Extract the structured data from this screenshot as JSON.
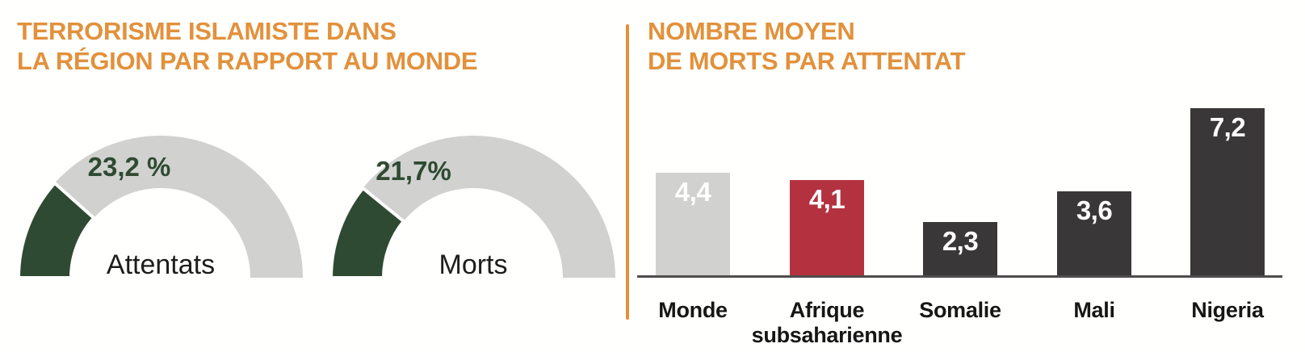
{
  "page_background": "#FFFFFD",
  "accent_orange": "#E2913C",
  "left_panel": {
    "title_line1": "TERRORISME ISLAMISTE DANS",
    "title_line2": "LA RÉGION PAR RAPPORT AU MONDE"
  },
  "right_panel": {
    "title_line1": "NOMBRE MOYEN",
    "title_line2": "DE MORTS PAR ATTENTAT"
  },
  "chart_data": [
    {
      "type": "gauge",
      "title": "Terrorisme islamiste dans la région par rapport au monde",
      "unit": "%",
      "range": [
        0,
        100
      ],
      "filled_color": "#2F4A33",
      "remainder_color": "#D1D1D0",
      "label_color": "#2E4A32",
      "series": [
        {
          "name": "Attentats",
          "value": 23.2,
          "display": "23,2 %"
        },
        {
          "name": "Morts",
          "value": 21.7,
          "display": "21,7%"
        }
      ]
    },
    {
      "type": "bar",
      "title": "Nombre moyen de morts par attentat",
      "categories": [
        "Monde",
        "Afrique subsaharienne",
        "Somalie",
        "Mali",
        "Nigeria"
      ],
      "values": [
        4.4,
        4.1,
        2.3,
        3.6,
        7.2
      ],
      "value_labels": [
        "4,4",
        "4,1",
        "2,3",
        "3,6",
        "7,2"
      ],
      "bar_colors": [
        "#D1D1D0",
        "#B43240",
        "#3A3738",
        "#3A3738",
        "#3A3738"
      ],
      "value_label_color": "#FFFFFF",
      "category_label_color": "#161616",
      "axis_line_color": "#4F4C4D",
      "ylim": [
        0,
        7.5
      ],
      "grid": false,
      "legend": false
    }
  ]
}
